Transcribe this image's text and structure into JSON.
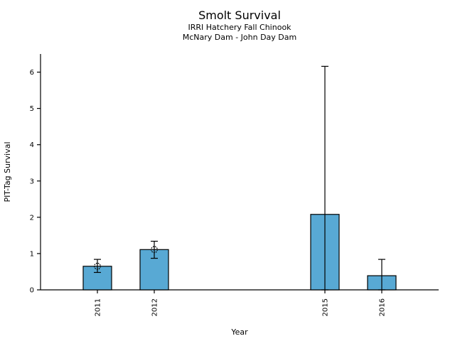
{
  "chart_data": {
    "type": "bar",
    "title": "Smolt Survival",
    "subtitle": [
      "IRRI Hatchery Fall Chinook",
      "McNary Dam - John Day Dam"
    ],
    "xlabel": "Year",
    "ylabel": "PIT-Tag Survival",
    "categories": [
      "2011",
      "2012",
      "2015",
      "2016"
    ],
    "values": [
      0.65,
      1.11,
      2.08,
      0.39
    ],
    "error_low": [
      0.48,
      0.87,
      0,
      0
    ],
    "error_high": [
      0.84,
      1.34,
      6.16,
      0.84
    ],
    "point_marker_on_bar_top": [
      true,
      true,
      false,
      false
    ],
    "yticks": [
      0,
      1,
      2,
      3,
      4,
      5,
      6
    ],
    "ylim": [
      0,
      6.5
    ],
    "xlim_years": [
      2010,
      2017
    ],
    "x_tick_label_rotation_deg": 90,
    "grid": false,
    "legend": null,
    "colors": {
      "bar_fill": "#58a9d4",
      "bar_edge": "#000000",
      "error": "#000000",
      "text": "#000000",
      "background": "#ffffff"
    }
  }
}
